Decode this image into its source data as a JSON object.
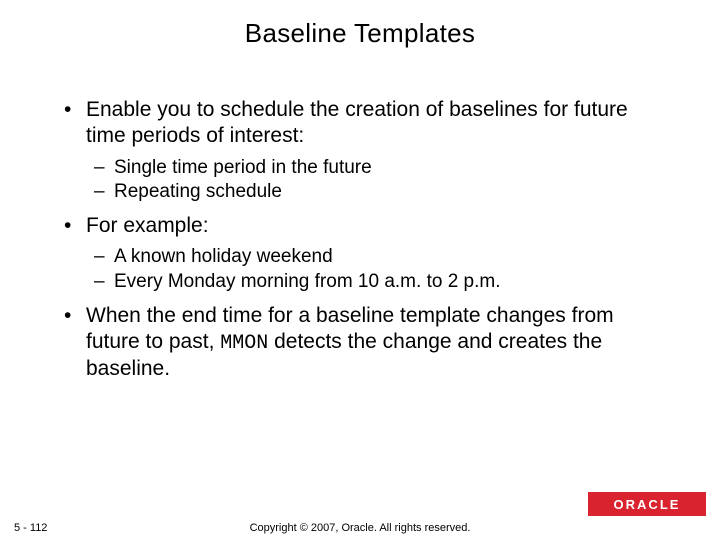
{
  "slide": {
    "title": "Baseline Templates",
    "bullets": [
      {
        "text": "Enable you to schedule the creation of baselines for future time periods of interest:",
        "sub": [
          {
            "text": "Single time period in the future"
          },
          {
            "text": "Repeating schedule"
          }
        ]
      },
      {
        "text": " For example:",
        "sub": [
          {
            "text": "A known holiday weekend"
          },
          {
            "text": "Every Monday morning from 10 a.m. to 2 p.m."
          }
        ]
      },
      {
        "text_pre": "When the end time for a baseline template changes from future to past, ",
        "text_mono": "MMON",
        "text_post": " detects the change and creates the baseline.",
        "sub": []
      }
    ],
    "footer": {
      "page": "5 - 112",
      "copyright": "Copyright © 2007, Oracle. All rights reserved.",
      "logo": "ORACLE"
    }
  },
  "style": {
    "background_color": "#ffffff",
    "title_fontsize": 26,
    "level1_fontsize": 21,
    "level2_fontsize": 19,
    "footer_fontsize": 11,
    "text_color": "#000000",
    "brand_color": "#d9232e",
    "brand_text_color": "#ffffff"
  }
}
